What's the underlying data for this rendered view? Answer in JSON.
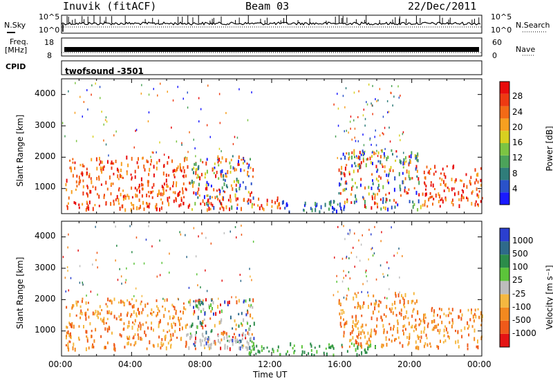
{
  "header": {
    "station": "Inuvik (fitACF)",
    "beam": "Beam 03",
    "date": "22/Dec/2011"
  },
  "top_panels": {
    "nsky_label": "N.Sky",
    "nsky_ticks": [
      "10^5",
      "10^0"
    ],
    "nsearch_label": "N.Search",
    "nsearch_ticks": [
      "10^5",
      "10^0"
    ],
    "freq_label_line1": "Freq.",
    "freq_label_line2": "[MHz]",
    "freq_ticks": [
      "18",
      "8"
    ],
    "nave_label": "Nave",
    "nave_ticks": [
      "60",
      "0"
    ],
    "cpid_label": "CPID",
    "cpid_value": "twofsound -3501"
  },
  "chart_data": [
    {
      "type": "heatmap",
      "panel": "power",
      "ylabel": "Slant Range [km]",
      "yticks": [
        "1000",
        "2000",
        "3000",
        "4000"
      ],
      "ylim": [
        200,
        4500
      ],
      "xlim_hours": [
        0,
        24
      ],
      "colorbar": {
        "label": "Power [dB]",
        "ticks": [
          "4",
          "8",
          "12",
          "16",
          "20",
          "24",
          "28"
        ],
        "colors": [
          "#1a1aff",
          "#2a52c9",
          "#2f7d7a",
          "#4ca35a",
          "#7cc443",
          "#d8d020",
          "#f7a020",
          "#f36a16",
          "#ee3a12",
          "#e80c0c"
        ]
      },
      "regions": [
        {
          "t": [
            0.2,
            7.2
          ],
          "r": [
            300,
            2000
          ],
          "level": "high"
        },
        {
          "t": [
            7.2,
            11.0
          ],
          "r": [
            300,
            2000
          ],
          "level": "mixed"
        },
        {
          "t": [
            8.0,
            12.5
          ],
          "r": [
            300,
            700
          ],
          "level": "high"
        },
        {
          "t": [
            12.5,
            16.0
          ],
          "r": [
            200,
            600
          ],
          "level": "low"
        },
        {
          "t": [
            15.8,
            20.5
          ],
          "r": [
            300,
            2200
          ],
          "level": "mixed"
        },
        {
          "t": [
            20.5,
            24.0
          ],
          "r": [
            400,
            1700
          ],
          "level": "high"
        }
      ]
    },
    {
      "type": "heatmap",
      "panel": "velocity",
      "ylabel": "Slant Range [km]",
      "yticks": [
        "1000",
        "2000",
        "3000",
        "4000"
      ],
      "ylim": [
        200,
        4500
      ],
      "xlim_hours": [
        0,
        24
      ],
      "colorbar": {
        "label": "Velocity [m s⁻¹]",
        "ticks": [
          "1000",
          "500",
          "100",
          "25",
          "-25",
          "-100",
          "-500",
          "-1000"
        ],
        "colors": [
          "#2b3fcf",
          "#2e6a8a",
          "#2c8c4a",
          "#5cc43a",
          "#bdbdbd",
          "#f5b840",
          "#f3891f",
          "#ef5a1a",
          "#e41414"
        ]
      },
      "regions": [
        {
          "t": [
            0.2,
            7.2
          ],
          "r": [
            400,
            2000
          ],
          "level": "negative"
        },
        {
          "t": [
            7.2,
            11.0
          ],
          "r": [
            400,
            2000
          ],
          "level": "mixed"
        },
        {
          "t": [
            7.0,
            11.0
          ],
          "r": [
            400,
            900
          ],
          "level": "zero"
        },
        {
          "t": [
            10.5,
            18.0
          ],
          "r": [
            200,
            600
          ],
          "level": "positive"
        },
        {
          "t": [
            15.8,
            20.5
          ],
          "r": [
            400,
            2200
          ],
          "level": "negative"
        },
        {
          "t": [
            20.5,
            24.0
          ],
          "r": [
            400,
            1700
          ],
          "level": "negative"
        }
      ]
    }
  ],
  "xaxis": {
    "ticks": [
      "00:00",
      "04:00",
      "08:00",
      "12:00",
      "16:00",
      "20:00",
      "00:00"
    ],
    "label": "Time UT"
  }
}
